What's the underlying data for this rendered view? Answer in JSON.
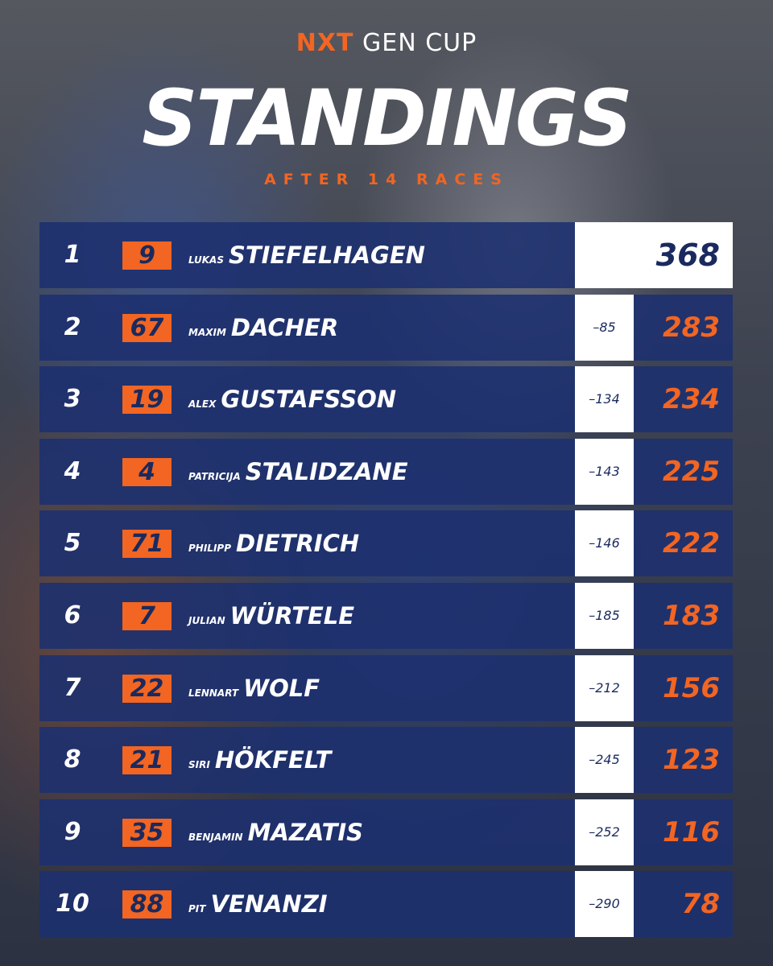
{
  "header": {
    "logo_mark": "NXT",
    "logo_text": "GEN CUP",
    "title": "STANDINGS",
    "subtitle": "AFTER 14 RACES"
  },
  "table": {
    "rows": [
      {
        "position": 1,
        "number": 9,
        "first_name": "LUKAS",
        "last_name": "STIEFELHAGEN",
        "points": 368
      },
      {
        "position": 2,
        "number": 67,
        "first_name": "MAXIM",
        "last_name": "DACHER",
        "gap": "–85",
        "points": 283
      },
      {
        "position": 3,
        "number": 19,
        "first_name": "ALEX",
        "last_name": "GUSTAFSSON",
        "gap": "–134",
        "points": 234
      },
      {
        "position": 4,
        "number": 4,
        "first_name": "PATRICIJA",
        "last_name": "STALIDZANE",
        "gap": "–143",
        "points": 225
      },
      {
        "position": 5,
        "number": 71,
        "first_name": "PHILIPP",
        "last_name": "DIETRICH",
        "gap": "–146",
        "points": 222
      },
      {
        "position": 6,
        "number": 7,
        "first_name": "JULIAN",
        "last_name": "WÜRTELE",
        "gap": "–185",
        "points": 183
      },
      {
        "position": 7,
        "number": 22,
        "first_name": "LENNART",
        "last_name": "WOLF",
        "gap": "–212",
        "points": 156
      },
      {
        "position": 8,
        "number": 21,
        "first_name": "SIRI",
        "last_name": "HÖKFELT",
        "gap": "–245",
        "points": 123
      },
      {
        "position": 9,
        "number": 35,
        "first_name": "BENJAMIN",
        "last_name": "MAZATIS",
        "gap": "–252",
        "points": 116
      },
      {
        "position": 10,
        "number": 88,
        "first_name": "PIT",
        "last_name": "VENANZI",
        "gap": "–290",
        "points": 78
      }
    ]
  }
}
